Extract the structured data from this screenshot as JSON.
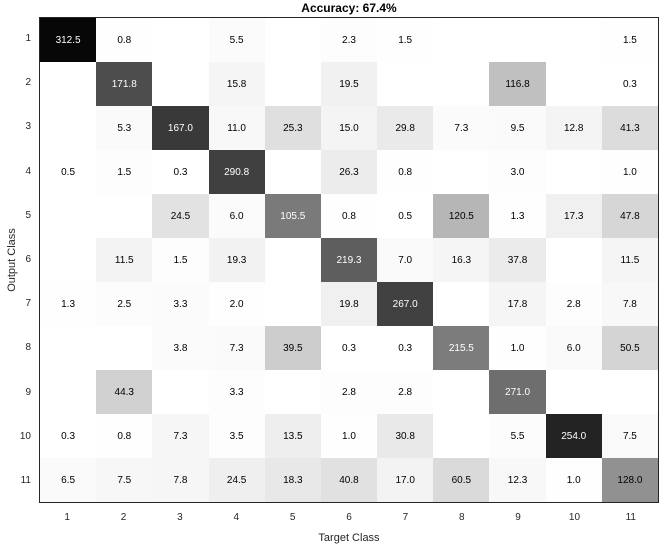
{
  "chart_data": {
    "type": "heatmap",
    "title": "Accuracy: 67.4%",
    "xlabel": "Target Class",
    "ylabel": "Output Class",
    "x_tick_labels": [
      "1",
      "2",
      "3",
      "4",
      "5",
      "6",
      "7",
      "8",
      "9",
      "10",
      "11"
    ],
    "y_tick_labels": [
      "1",
      "2",
      "3",
      "4",
      "5",
      "6",
      "7",
      "8",
      "9",
      "10",
      "11"
    ],
    "legend_position": "none",
    "grid": false,
    "shading": "column-normalized grayscale, 0 = white, column maximum fraction = black",
    "colors": {
      "cell_max": "#000000",
      "cell_empty": "#ffffff",
      "axis": "#262626",
      "text_dark": "#000000",
      "text_light": "#ffffff"
    },
    "matrix": [
      [
        312.5,
        0.8,
        0.0,
        5.5,
        0.0,
        2.3,
        1.5,
        0.0,
        0.0,
        0.0,
        1.5
      ],
      [
        0.0,
        171.8,
        0.0,
        15.8,
        0.0,
        19.5,
        0.0,
        0.0,
        116.8,
        0.0,
        0.3
      ],
      [
        0.0,
        5.3,
        167.0,
        11.0,
        25.3,
        15.0,
        29.8,
        7.3,
        9.5,
        12.8,
        41.3
      ],
      [
        0.5,
        1.5,
        0.3,
        290.8,
        0.0,
        26.3,
        0.8,
        0.0,
        3.0,
        0.0,
        1.0
      ],
      [
        0.0,
        0.0,
        24.5,
        6.0,
        105.5,
        0.8,
        0.5,
        120.5,
        1.3,
        17.3,
        47.8
      ],
      [
        0.0,
        11.5,
        1.5,
        19.3,
        0.0,
        219.3,
        7.0,
        16.3,
        37.8,
        0.0,
        11.5
      ],
      [
        1.3,
        2.5,
        3.3,
        2.0,
        0.0,
        19.8,
        267.0,
        0.0,
        17.8,
        2.8,
        7.8
      ],
      [
        0.0,
        0.0,
        3.8,
        7.3,
        39.5,
        0.3,
        0.3,
        215.5,
        1.0,
        6.0,
        50.5
      ],
      [
        0.0,
        44.3,
        0.0,
        3.3,
        0.0,
        2.8,
        2.8,
        0.0,
        271.0,
        0.0,
        0.0
      ],
      [
        0.3,
        0.8,
        7.3,
        3.5,
        13.5,
        1.0,
        30.8,
        0.0,
        5.5,
        254.0,
        7.5
      ],
      [
        6.5,
        7.5,
        7.8,
        24.5,
        18.3,
        40.8,
        17.0,
        60.5,
        12.3,
        1.0,
        128.0
      ]
    ]
  }
}
